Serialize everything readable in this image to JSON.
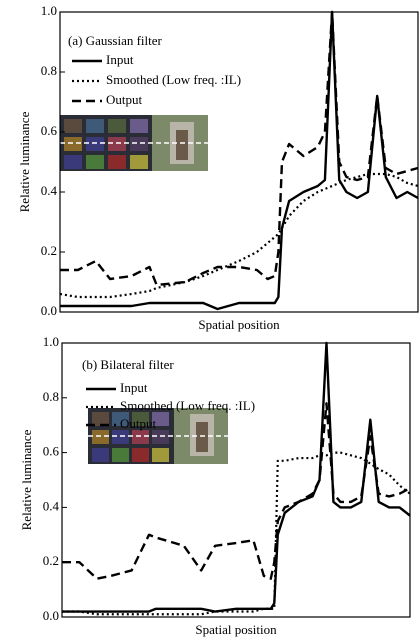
{
  "chart_data": [
    {
      "type": "line",
      "annotation": "(a) Gaussian filter",
      "xlabel": "Spatial position",
      "ylabel": "Relative luminance",
      "x": [
        0,
        5,
        10,
        14,
        20,
        25,
        27,
        35,
        40,
        44,
        50,
        55,
        58,
        60,
        61,
        62,
        64,
        68,
        72,
        74,
        76,
        78,
        80,
        83,
        86,
        88.6,
        91,
        94,
        97,
        100
      ],
      "xlim": [
        0,
        100
      ],
      "ylim": [
        0,
        1
      ],
      "yticks": [
        {
          "value": 0,
          "label": "0.0"
        },
        0.2,
        0.4,
        0.6,
        0.8,
        {
          "value": 1,
          "label": "1.0"
        }
      ],
      "grid": false,
      "legend": "upper left",
      "series": [
        {
          "name": "Input",
          "color": "#000000",
          "style": "solid",
          "values": [
            0.02,
            0.02,
            0.02,
            0.02,
            0.02,
            0.03,
            0.03,
            0.03,
            0.03,
            0.01,
            0.03,
            0.03,
            0.03,
            0.03,
            0.05,
            0.28,
            0.37,
            0.4,
            0.42,
            0.44,
            1.0,
            0.44,
            0.4,
            0.38,
            0.4,
            0.72,
            0.45,
            0.38,
            0.4,
            0.38
          ]
        },
        {
          "name": "Smoothed (Low freq. :IL)",
          "color": "#000000",
          "style": "dotted",
          "values": [
            0.06,
            0.05,
            0.05,
            0.05,
            0.06,
            0.07,
            0.08,
            0.1,
            0.12,
            0.14,
            0.17,
            0.2,
            0.23,
            0.25,
            0.26,
            0.28,
            0.32,
            0.37,
            0.4,
            0.41,
            0.42,
            0.43,
            0.44,
            0.45,
            0.46,
            0.46,
            0.46,
            0.45,
            0.43,
            0.42
          ]
        },
        {
          "name": "Output",
          "color": "#000000",
          "style": "dashed",
          "values": [
            0.14,
            0.14,
            0.17,
            0.11,
            0.12,
            0.15,
            0.09,
            0.1,
            0.13,
            0.15,
            0.15,
            0.14,
            0.11,
            0.12,
            0.2,
            0.5,
            0.56,
            0.52,
            0.55,
            0.6,
            1.0,
            0.5,
            0.45,
            0.44,
            0.45,
            0.72,
            0.48,
            0.46,
            0.47,
            0.48
          ]
        }
      ]
    },
    {
      "type": "line",
      "annotation": "(b) Bilateral filter",
      "xlabel": "Spatial position",
      "ylabel": "Relative luminance",
      "x": [
        0,
        5,
        10,
        14,
        20,
        25,
        27,
        35,
        40,
        44,
        50,
        55,
        58,
        60,
        61,
        62,
        64,
        68,
        72,
        74,
        76,
        78,
        80,
        83,
        86,
        88.6,
        91,
        94,
        97,
        100
      ],
      "xlim": [
        0,
        100
      ],
      "ylim": [
        0,
        1
      ],
      "yticks": [
        {
          "value": 0,
          "label": "0.0"
        },
        0.2,
        0.4,
        0.6,
        0.8,
        {
          "value": 1,
          "label": "1.0"
        }
      ],
      "grid": false,
      "legend": "upper left",
      "series": [
        {
          "name": "Input",
          "color": "#000000",
          "style": "solid",
          "values": [
            0.02,
            0.02,
            0.02,
            0.02,
            0.02,
            0.02,
            0.03,
            0.03,
            0.03,
            0.02,
            0.03,
            0.03,
            0.03,
            0.03,
            0.05,
            0.3,
            0.38,
            0.42,
            0.44,
            0.5,
            1.0,
            0.42,
            0.4,
            0.4,
            0.42,
            0.72,
            0.42,
            0.4,
            0.4,
            0.37
          ]
        },
        {
          "name": "Smoothed (Low freq. :IL)",
          "color": "#000000",
          "style": "dotted",
          "values": [
            0.02,
            0.02,
            0.01,
            0.01,
            0.01,
            0.01,
            0.01,
            0.01,
            0.01,
            0.02,
            0.02,
            0.02,
            0.03,
            0.03,
            0.03,
            0.57,
            0.57,
            0.58,
            0.58,
            0.59,
            0.59,
            0.6,
            0.6,
            0.59,
            0.58,
            0.56,
            0.54,
            0.52,
            0.48,
            0.45
          ]
        },
        {
          "name": "Output",
          "color": "#000000",
          "style": "dashed",
          "values": [
            0.2,
            0.2,
            0.14,
            0.15,
            0.17,
            0.3,
            0.29,
            0.26,
            0.17,
            0.26,
            0.27,
            0.28,
            0.15,
            0.14,
            0.2,
            0.35,
            0.4,
            0.42,
            0.45,
            0.5,
            0.78,
            0.45,
            0.42,
            0.42,
            0.44,
            0.66,
            0.45,
            0.44,
            0.45,
            0.47
          ]
        }
      ]
    }
  ]
}
